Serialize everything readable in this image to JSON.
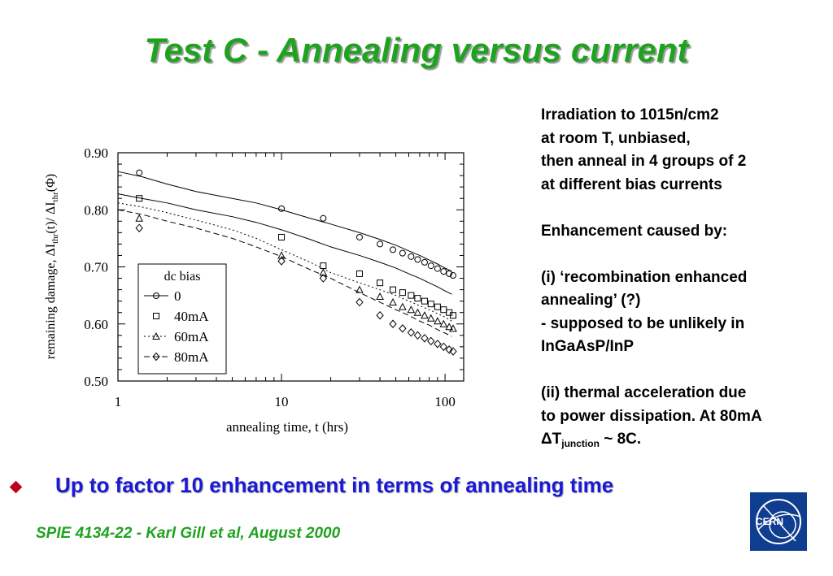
{
  "slide": {
    "title": "Test C - Annealing versus current",
    "bullet": "Up to factor 10 enhancement in terms of annealing time",
    "footer": "SPIE 4134-22 - Karl Gill et al, August 2000",
    "logo_text": "CERN",
    "colors": {
      "title": "#1fa21f",
      "bullet_text": "#1a1ad6",
      "bullet_icon": "#c0001a",
      "logo_bg": "#0f3d8f"
    }
  },
  "notes": {
    "line1": "Irradiation to 1015n/cm2",
    "line2": "at room T, unbiased,",
    "line3": "then anneal in 4 groups of 2",
    "line4": "at different bias currents",
    "line5": "Enhancement caused by:",
    "line6": "(i) ‘recombination enhanced",
    "line7": "annealing’ (?)",
    "line8": "- supposed to be unlikely in",
    "line9": "InGaAsP/InP",
    "line10": "(ii) thermal acceleration due",
    "line11": "to power dissipation. At 80mA",
    "line12_delta": "ΔT",
    "line12_sub": "junction",
    "line12_end": " ~ 8C."
  },
  "chart_data": {
    "type": "line",
    "xlabel": "annealing time, t (hrs)",
    "ylabel_parts": [
      "remaining damage, ",
      "ΔI",
      "thr",
      "(t)/ ",
      "ΔI",
      "thr",
      "(Φ)"
    ],
    "xscale": "log",
    "xlim": [
      1,
      130
    ],
    "ylim": [
      0.5,
      0.9
    ],
    "xticks": [
      1,
      10,
      100
    ],
    "xtick_labels": [
      "1",
      "10",
      "100"
    ],
    "yticks": [
      0.5,
      0.6,
      0.7,
      0.8,
      0.9
    ],
    "ytick_labels": [
      "0.50",
      "0.60",
      "0.70",
      "0.80",
      "0.90"
    ],
    "grid": false,
    "legend_title": "dc bias",
    "legend_position": "lower-left",
    "series": [
      {
        "name": "0",
        "marker": "circle",
        "dash": "none",
        "line_x": [
          1,
          1.4,
          2,
          3,
          5,
          7,
          10,
          15,
          20,
          30,
          40,
          50,
          60,
          70,
          80,
          90,
          100,
          110
        ],
        "line_y": [
          0.867,
          0.858,
          0.845,
          0.832,
          0.82,
          0.812,
          0.8,
          0.785,
          0.775,
          0.76,
          0.748,
          0.738,
          0.728,
          0.72,
          0.712,
          0.705,
          0.698,
          0.692
        ],
        "points_x": [
          1.35,
          10,
          18,
          30,
          40,
          48,
          55,
          62,
          68,
          75,
          82,
          90,
          98,
          106,
          112
        ],
        "points_y": [
          0.865,
          0.802,
          0.785,
          0.752,
          0.74,
          0.73,
          0.724,
          0.718,
          0.713,
          0.708,
          0.702,
          0.697,
          0.692,
          0.688,
          0.685
        ]
      },
      {
        "name": "40mA",
        "marker": "square",
        "dash": "none",
        "line_x": [
          1,
          1.4,
          2,
          3,
          5,
          7,
          10,
          15,
          20,
          30,
          40,
          50,
          60,
          70,
          80,
          90,
          100,
          110
        ],
        "line_y": [
          0.828,
          0.82,
          0.812,
          0.8,
          0.788,
          0.778,
          0.765,
          0.748,
          0.735,
          0.72,
          0.708,
          0.698,
          0.688,
          0.68,
          0.672,
          0.665,
          0.658,
          0.652
        ],
        "points_x": [
          1.35,
          10,
          18,
          30,
          40,
          48,
          55,
          62,
          68,
          75,
          82,
          90,
          98,
          106,
          112
        ],
        "points_y": [
          0.82,
          0.752,
          0.702,
          0.688,
          0.672,
          0.66,
          0.655,
          0.65,
          0.645,
          0.64,
          0.635,
          0.63,
          0.625,
          0.62,
          0.615
        ]
      },
      {
        "name": "60mA",
        "marker": "triangle",
        "dash": "2,3",
        "line_x": [
          1,
          1.4,
          2,
          3,
          5,
          7,
          10,
          15,
          20,
          30,
          40,
          50,
          60,
          70,
          80,
          90,
          100,
          110
        ],
        "line_y": [
          0.812,
          0.805,
          0.795,
          0.782,
          0.765,
          0.75,
          0.73,
          0.708,
          0.69,
          0.672,
          0.66,
          0.65,
          0.64,
          0.632,
          0.625,
          0.618,
          0.612,
          0.605
        ],
        "points_x": [
          1.35,
          10,
          18,
          30,
          40,
          48,
          55,
          62,
          68,
          75,
          82,
          90,
          98,
          106,
          112
        ],
        "points_y": [
          0.785,
          0.72,
          0.69,
          0.66,
          0.648,
          0.638,
          0.63,
          0.625,
          0.62,
          0.615,
          0.61,
          0.605,
          0.6,
          0.595,
          0.592
        ]
      },
      {
        "name": "80mA",
        "marker": "diamond",
        "dash": "7,4",
        "line_x": [
          1,
          1.4,
          2,
          3,
          5,
          7,
          10,
          15,
          20,
          30,
          40,
          50,
          60,
          70,
          80,
          90,
          100,
          110
        ],
        "line_y": [
          0.8,
          0.792,
          0.78,
          0.768,
          0.75,
          0.735,
          0.718,
          0.695,
          0.68,
          0.655,
          0.638,
          0.625,
          0.615,
          0.605,
          0.598,
          0.59,
          0.584,
          0.578
        ],
        "points_x": [
          1.35,
          10,
          18,
          30,
          40,
          48,
          55,
          62,
          68,
          75,
          82,
          90,
          98,
          106,
          112
        ],
        "points_y": [
          0.768,
          0.71,
          0.68,
          0.638,
          0.615,
          0.6,
          0.592,
          0.585,
          0.58,
          0.575,
          0.57,
          0.565,
          0.56,
          0.555,
          0.552
        ]
      }
    ]
  }
}
